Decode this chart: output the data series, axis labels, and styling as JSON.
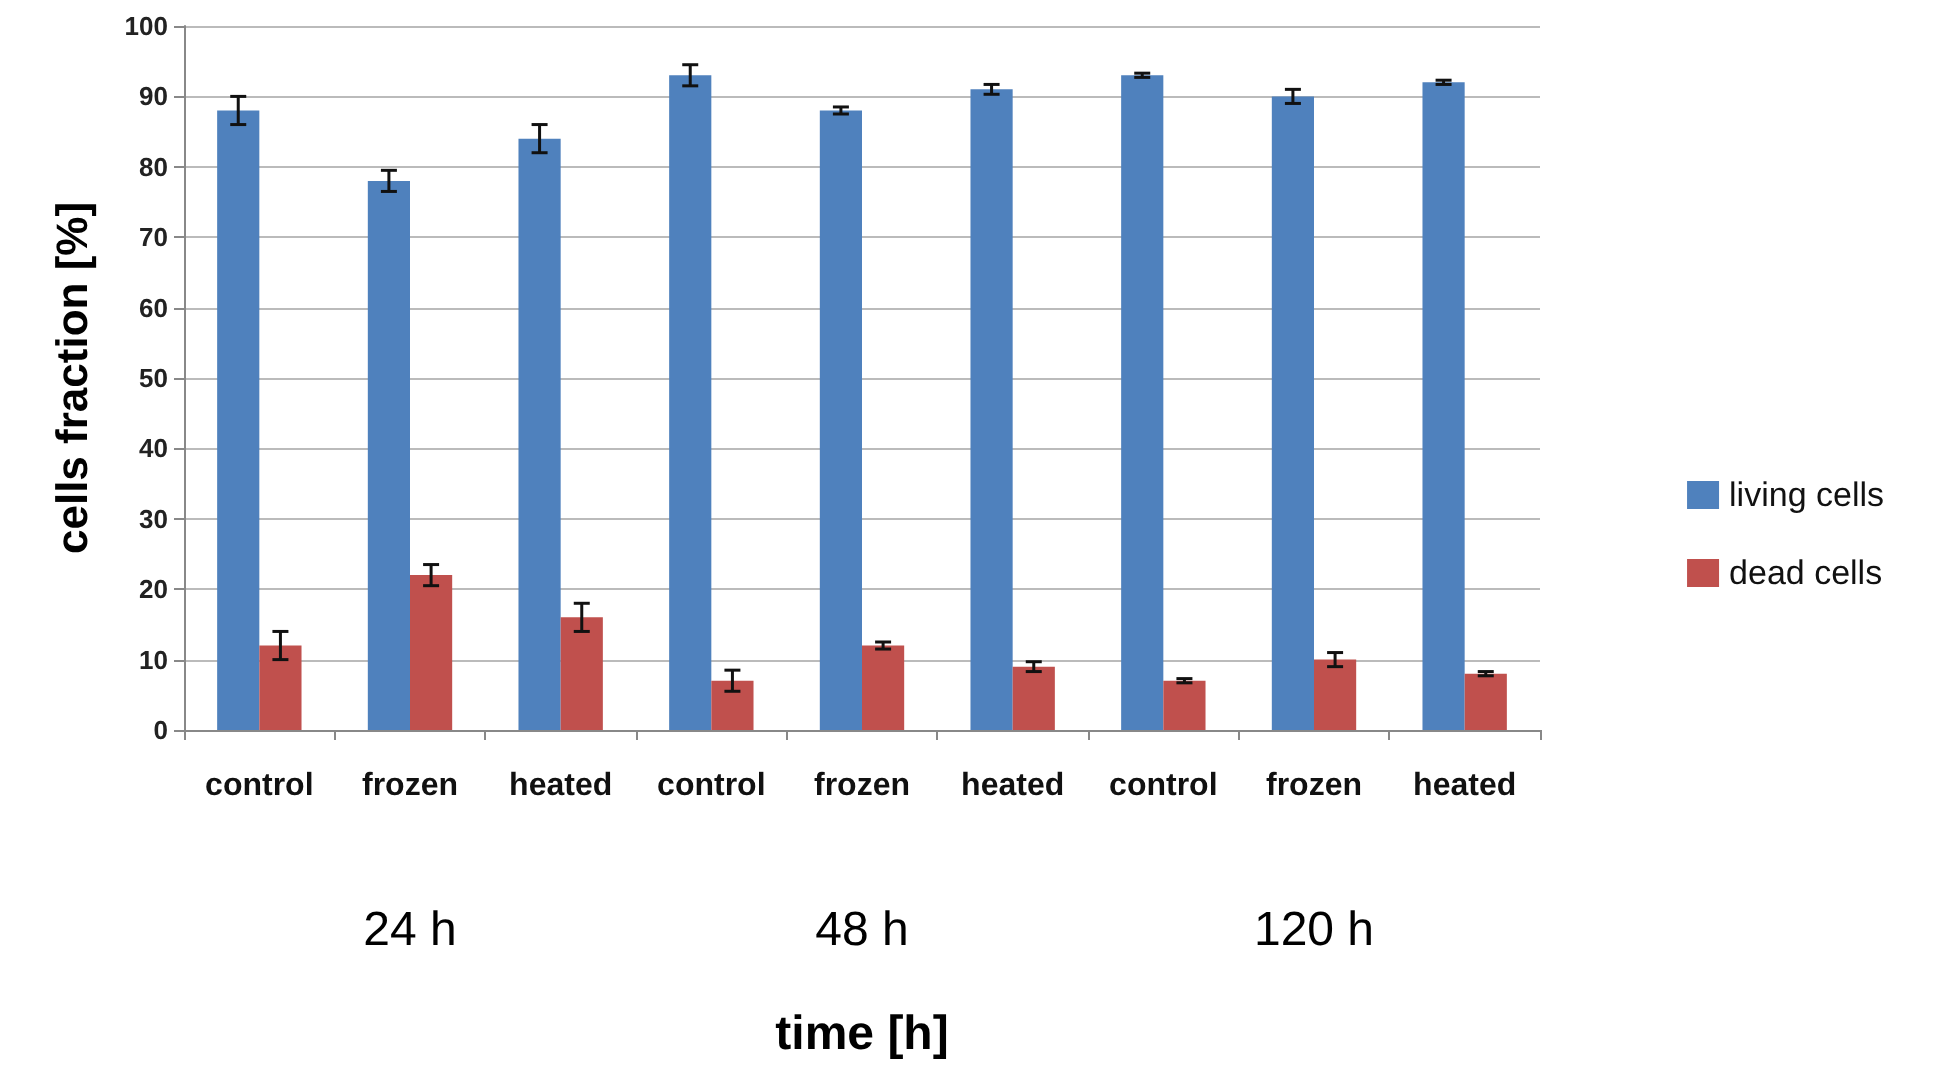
{
  "chart_data": {
    "type": "bar",
    "categories": [
      "control",
      "frozen",
      "heated",
      "control",
      "frozen",
      "heated",
      "control",
      "frozen",
      "heated"
    ],
    "series": [
      {
        "name": "living cells",
        "color": "#4f81bd",
        "values": [
          88,
          78,
          84,
          93,
          88,
          91,
          93,
          90,
          92
        ],
        "errors": [
          2,
          1.5,
          2,
          1.5,
          0.5,
          0.7,
          0.3,
          1,
          0.3
        ]
      },
      {
        "name": "dead cells",
        "color": "#c0504d",
        "values": [
          12,
          22,
          16,
          7,
          12,
          9,
          7,
          10,
          8
        ],
        "errors": [
          2,
          1.5,
          2,
          1.5,
          0.5,
          0.7,
          0.3,
          1,
          0.3
        ]
      }
    ],
    "xlabel": "time [h]",
    "ylabel": "cells fraction [%]",
    "annotations": [
      "24 h",
      "48 h",
      "120 h"
    ],
    "ylim": [
      0,
      100
    ],
    "yticks": [
      0,
      10,
      20,
      30,
      40,
      50,
      60,
      70,
      80,
      90,
      100
    ],
    "grid": "y",
    "legend": "right"
  }
}
